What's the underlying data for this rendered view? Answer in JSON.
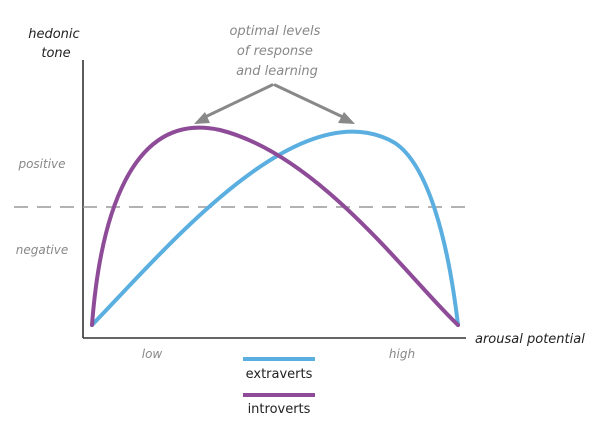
{
  "y_axis_label": [
    "hedonic",
    "tone"
  ],
  "x_axis_label": "arousal potential",
  "annotation": [
    "optimal levels",
    "of response",
    "and learning"
  ],
  "region_labels": {
    "positive": "positive",
    "negative": "negative"
  },
  "x_tick_labels": {
    "low": "low",
    "high": "high"
  },
  "legend": [
    {
      "label": "extraverts",
      "color": "#5aafe0"
    },
    {
      "label": "introverts",
      "color": "#8e4c98"
    }
  ],
  "colors": {
    "axis": "#333333",
    "threshold": "#999999",
    "arrow": "#888888",
    "label_dark": "#222222",
    "label_gray": "#888888"
  }
}
